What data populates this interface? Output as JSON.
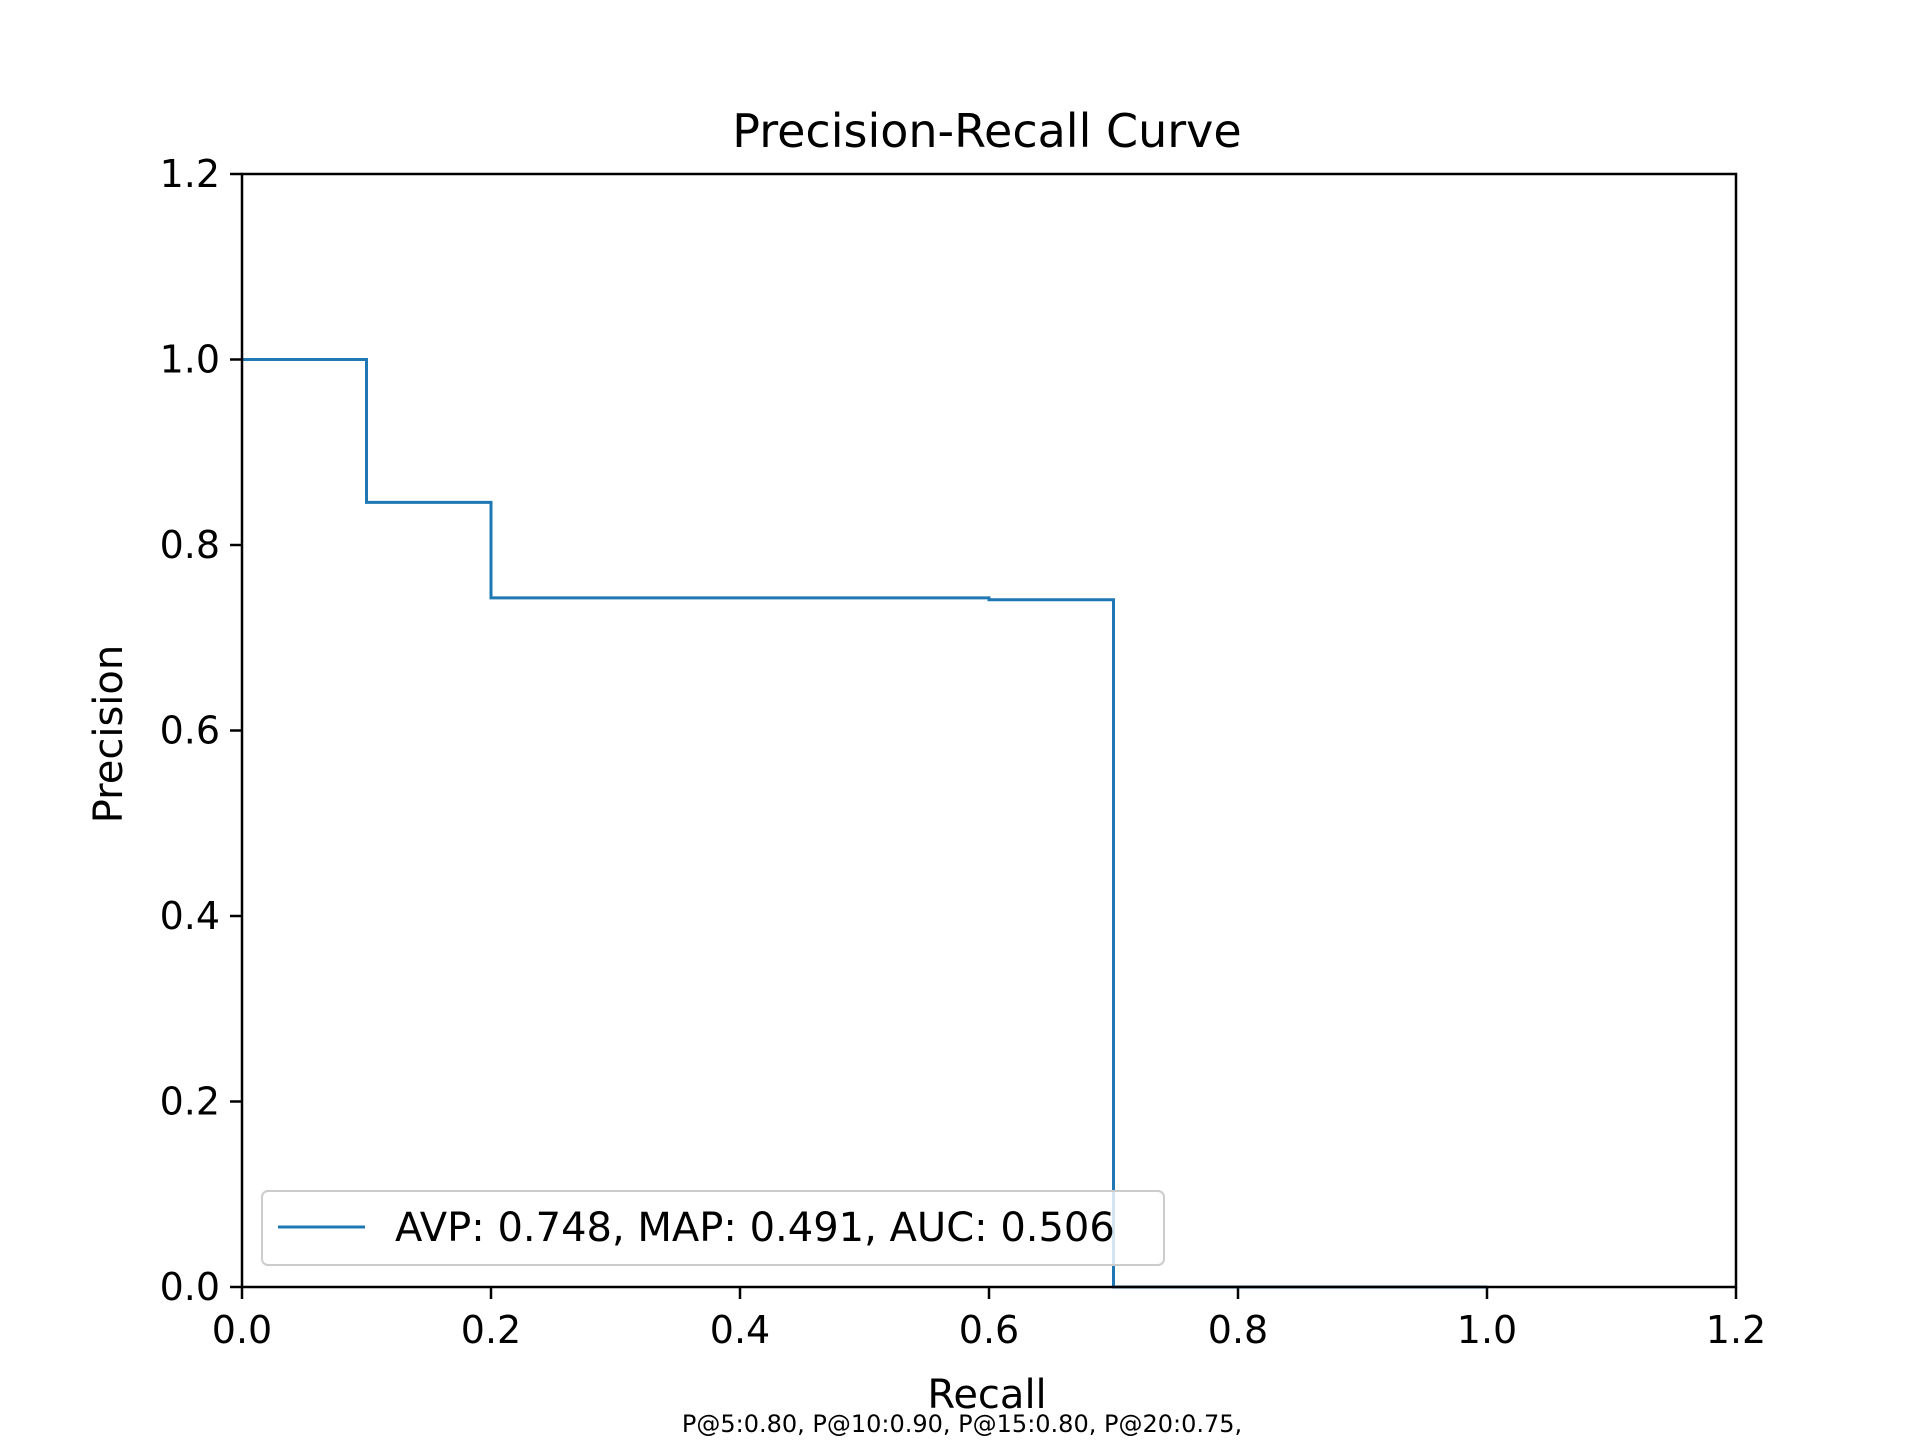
{
  "chart_data": {
    "type": "line",
    "title": "Precision-Recall Curve",
    "xlabel": "Recall",
    "ylabel": "Precision",
    "xlim": [
      0.0,
      1.2
    ],
    "ylim": [
      0.0,
      1.2
    ],
    "x_ticks": [
      "0.0",
      "0.2",
      "0.4",
      "0.6",
      "0.8",
      "1.0",
      "1.2"
    ],
    "y_ticks": [
      "0.0",
      "0.2",
      "0.4",
      "0.6",
      "0.8",
      "1.0",
      "1.2"
    ],
    "grid": false,
    "legend_placement": "lower-left",
    "series": [
      {
        "name": "AVP: 0.748, MAP: 0.491, AUC: 0.506",
        "color": "#1f77b4",
        "step": "post",
        "x": [
          0.0,
          0.1,
          0.2,
          0.6,
          0.7,
          0.7,
          1.0
        ],
        "y": [
          1.0,
          0.846,
          0.743,
          0.741,
          0.741,
          0.0,
          0.0
        ]
      }
    ],
    "footnote": "P@5:0.80, P@10:0.90, P@15:0.80, P@20:0.75,"
  }
}
